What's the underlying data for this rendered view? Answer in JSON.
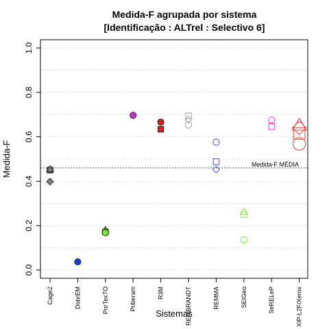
{
  "chart_data": {
    "type": "scatter",
    "title": "Medida-F agrupada por sistema",
    "subtitle": "[Identificação : ALTrel : Selectivo 6]",
    "xlabel": "Sistemas",
    "ylabel": "Medida-F",
    "ylim": [
      0,
      1
    ],
    "yticks": [
      "0.0",
      "0.2",
      "0.4",
      "0.6",
      "0.8",
      "1.0"
    ],
    "grid": true,
    "categories": [
      "Cage2",
      "DobrEM",
      "PorTexTO",
      "Priberam",
      "R3M",
      "REMBRANDT",
      "REMMA",
      "SEIGeo",
      "SeRELeP",
      "XIP-L2F/Xerox"
    ],
    "mean_line": {
      "label": "Medida-F MÉDIA",
      "value": 0.46
    },
    "points": [
      {
        "system": "Cage2",
        "value": 0.45,
        "shape": "square",
        "filled": true,
        "color": "#7f7f7f"
      },
      {
        "system": "Cage2",
        "value": 0.452,
        "shape": "circle",
        "filled": true,
        "color": "#7f7f7f"
      },
      {
        "system": "Cage2",
        "value": 0.453,
        "shape": "triangle",
        "filled": true,
        "color": "#7f7f7f"
      },
      {
        "system": "Cage2",
        "value": 0.398,
        "shape": "diamond",
        "filled": true,
        "color": "#7f7f7f"
      },
      {
        "system": "DobrEM",
        "value": 0.037,
        "shape": "circle",
        "filled": true,
        "color": "#1a3ad6"
      },
      {
        "system": "PorTexTO",
        "value": 0.18,
        "shape": "triangle",
        "filled": true,
        "color": "#7cea2a"
      },
      {
        "system": "PorTexTO",
        "value": 0.172,
        "shape": "square",
        "filled": true,
        "color": "#7cea2a"
      },
      {
        "system": "PorTexTO",
        "value": 0.168,
        "shape": "circle",
        "filled": true,
        "color": "#7cea2a"
      },
      {
        "system": "Priberam",
        "value": 0.697,
        "shape": "circle",
        "filled": true,
        "color": "#cc2ccc"
      },
      {
        "system": "R3M",
        "value": 0.666,
        "shape": "circle",
        "filled": true,
        "color": "#d42020"
      },
      {
        "system": "R3M",
        "value": 0.634,
        "shape": "square",
        "filled": true,
        "color": "#d42020"
      },
      {
        "system": "REMBRANDT",
        "value": 0.694,
        "shape": "square",
        "filled": false,
        "color": "#a8a8a8"
      },
      {
        "system": "REMBRANDT",
        "value": 0.678,
        "shape": "diamond",
        "filled": false,
        "color": "#a8a8a8"
      },
      {
        "system": "REMBRANDT",
        "value": 0.653,
        "shape": "circle",
        "filled": false,
        "color": "#a8a8a8"
      },
      {
        "system": "REMMA",
        "value": 0.576,
        "shape": "circle",
        "filled": false,
        "color": "#4a5ee0"
      },
      {
        "system": "REMMA",
        "value": 0.488,
        "shape": "square",
        "filled": false,
        "color": "#4a5ee0"
      },
      {
        "system": "REMMA",
        "value": 0.453,
        "shape": "diamond",
        "filled": false,
        "color": "#4a5ee0"
      },
      {
        "system": "SEIGeo",
        "value": 0.262,
        "shape": "triangle",
        "filled": false,
        "color": "#8ee84a"
      },
      {
        "system": "SEIGeo",
        "value": 0.25,
        "shape": "square",
        "filled": false,
        "color": "#8ee84a"
      },
      {
        "system": "SEIGeo",
        "value": 0.136,
        "shape": "circle",
        "filled": false,
        "color": "#8ee84a"
      },
      {
        "system": "SeRELeP",
        "value": 0.676,
        "shape": "circle",
        "filled": false,
        "color": "#d84fd8"
      },
      {
        "system": "SeRELeP",
        "value": 0.646,
        "shape": "square",
        "filled": false,
        "color": "#d84fd8"
      },
      {
        "system": "XIP-L2F/Xerox",
        "value": 0.65,
        "shape": "triangle",
        "filled": false,
        "color": "#e84a4a",
        "size": "large"
      },
      {
        "system": "XIP-L2F/Xerox",
        "value": 0.64,
        "shape": "diamond",
        "filled": false,
        "color": "#e84a4a",
        "size": "large"
      },
      {
        "system": "XIP-L2F/Xerox",
        "value": 0.615,
        "shape": "square",
        "filled": false,
        "color": "#e84a4a",
        "size": "large"
      },
      {
        "system": "XIP-L2F/Xerox",
        "value": 0.568,
        "shape": "circle",
        "filled": false,
        "color": "#e84a4a",
        "size": "large"
      }
    ]
  }
}
